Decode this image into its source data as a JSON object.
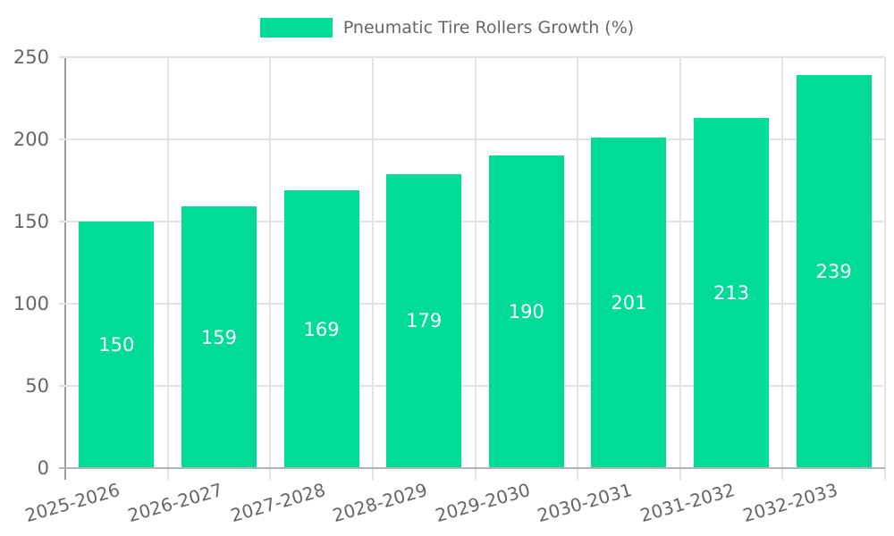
{
  "legend": {
    "label": "Pneumatic Tire Rollers Growth (%)"
  },
  "chart_data": {
    "type": "bar",
    "title": "",
    "categories": [
      "2025-2026",
      "2026-2027",
      "2027-2028",
      "2028-2029",
      "2029-2030",
      "2030-2031",
      "2031-2032",
      "2032-2033"
    ],
    "series": [
      {
        "name": "Pneumatic Tire Rollers Growth (%)",
        "values": [
          150,
          159,
          169,
          179,
          190,
          201,
          213,
          239
        ]
      }
    ],
    "xlabel": "",
    "ylabel": "",
    "ylim": [
      0,
      250
    ],
    "yticks": [
      0,
      50,
      100,
      150,
      200,
      250
    ],
    "grid": true,
    "legend_position": "top",
    "data_labels": "inside-center",
    "colors": {
      "bar": "#00DC95",
      "data_label_text": "#ffffff",
      "grid_line": "#E3E3E3",
      "y_axis_line": "#9B9B9B",
      "zero_baseline": "#B3B3B3",
      "tick_text": "#666666",
      "legend_text": "#666666",
      "background": "#ffffff"
    }
  }
}
